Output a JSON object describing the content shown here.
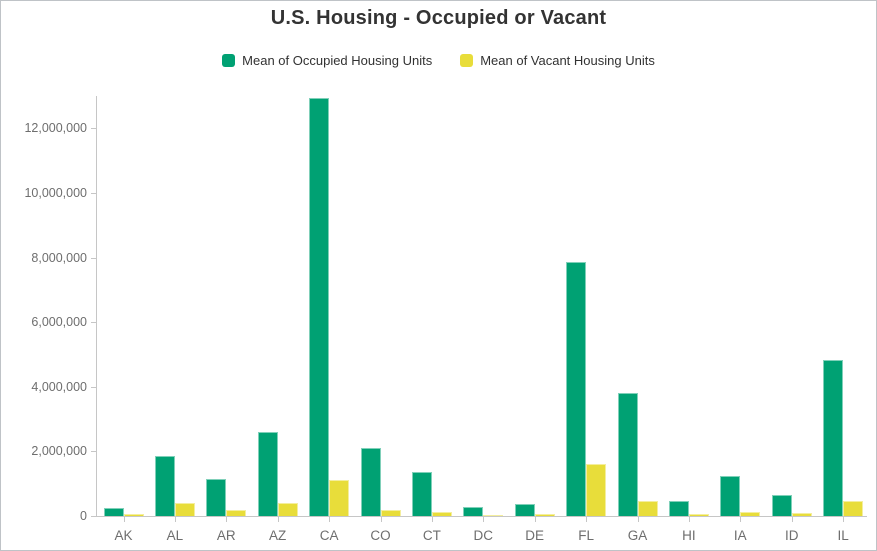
{
  "chart_data": {
    "type": "bar",
    "title": "U.S. Housing - Occupied or Vacant",
    "categories": [
      "AK",
      "AL",
      "AR",
      "AZ",
      "CA",
      "CO",
      "CT",
      "DC",
      "DE",
      "FL",
      "GA",
      "HI",
      "IA",
      "ID",
      "IL"
    ],
    "series": [
      {
        "name": "Mean of Occupied Housing Units",
        "color": "#00a173",
        "values": [
          240000,
          1860000,
          1140000,
          2600000,
          12950000,
          2100000,
          1360000,
          290000,
          360000,
          7850000,
          3800000,
          460000,
          1240000,
          640000,
          4820000
        ]
      },
      {
        "name": "Mean of Vacant Housing Units",
        "color": "#e8dd3a",
        "values": [
          60000,
          390000,
          180000,
          400000,
          1100000,
          180000,
          120000,
          40000,
          50000,
          1620000,
          470000,
          70000,
          120000,
          85000,
          460000
        ]
      }
    ],
    "xlabel": "",
    "ylabel": "",
    "ylim": [
      0,
      13000000
    ],
    "y_tick_interval": 2000000,
    "y_tick_labels": [
      "0",
      "2,000,000",
      "4,000,000",
      "6,000,000",
      "8,000,000",
      "10,000,000",
      "12,000,000"
    ],
    "grid": false,
    "legend_position": "top"
  },
  "colors": {
    "axis": "#c6c6c6",
    "tick_label": "#6e6e6e",
    "title": "#333333",
    "frame_border": "#bfc3c7",
    "background": "#ffffff"
  }
}
